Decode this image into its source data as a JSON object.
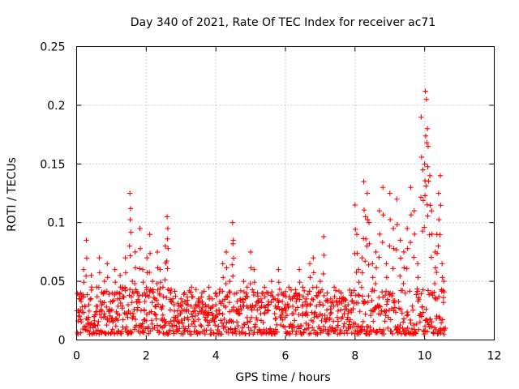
{
  "chart_data": {
    "type": "scatter",
    "title": "Day 340 of 2021, Rate Of TEC Index for receiver ac71",
    "xlabel": "GPS time / hours",
    "ylabel": "ROTI / TECUs",
    "xlim": [
      0,
      12
    ],
    "ylim": [
      0,
      0.25
    ],
    "grid": true,
    "marker": "+",
    "color": "#ff0000",
    "x_ticks": [
      0,
      2,
      4,
      6,
      8,
      10,
      12
    ],
    "x_tick_labels": [
      "0",
      "2",
      "4",
      "6",
      "8",
      "10",
      "12"
    ],
    "y_ticks": [
      0,
      0.05,
      0.1,
      0.15,
      0.2,
      0.25
    ],
    "y_tick_labels": [
      "0",
      "0.05",
      "0.1",
      "0.15",
      "0.2",
      "0.25"
    ],
    "series": [
      {
        "name": "ROTI",
        "x": [
          0.05,
          0.12,
          0.2,
          0.28,
          0.35,
          0.42,
          0.5,
          0.58,
          0.65,
          0.72,
          0.8,
          0.88,
          0.95,
          1.02,
          1.1,
          1.18,
          1.25,
          1.32,
          1.4,
          1.48,
          1.53,
          1.55,
          1.6,
          1.68,
          1.75,
          1.82,
          1.9,
          1.95,
          2.02,
          2.1,
          2.18,
          2.25,
          2.32,
          2.4,
          2.48,
          2.55,
          2.6,
          2.62,
          2.7,
          2.8,
          2.9,
          3.0,
          3.1,
          3.2,
          3.3,
          3.4,
          3.5,
          3.6,
          3.7,
          3.8,
          3.9,
          4.0,
          4.1,
          4.2,
          4.3,
          4.4,
          4.48,
          4.5,
          4.6,
          4.7,
          4.8,
          4.9,
          5.0,
          5.1,
          5.2,
          5.3,
          5.4,
          5.5,
          5.6,
          5.7,
          5.8,
          5.9,
          6.0,
          6.1,
          6.2,
          6.3,
          6.4,
          6.5,
          6.6,
          6.7,
          6.8,
          6.9,
          7.0,
          7.1,
          7.2,
          7.3,
          7.4,
          7.5,
          7.6,
          7.7,
          7.8,
          7.9,
          8.0,
          8.05,
          8.1,
          8.2,
          8.25,
          8.3,
          8.35,
          8.4,
          8.5,
          8.6,
          8.7,
          8.8,
          8.9,
          9.0,
          9.1,
          9.2,
          9.3,
          9.4,
          9.5,
          9.6,
          9.7,
          9.8,
          9.9,
          9.95,
          10.0,
          10.02,
          10.05,
          10.08,
          10.1,
          10.15,
          10.2,
          10.3,
          10.35,
          10.4,
          10.45,
          10.5,
          10.55
        ],
        "y": [
          0.025,
          0.04,
          0.06,
          0.085,
          0.03,
          0.055,
          0.02,
          0.045,
          0.07,
          0.03,
          0.05,
          0.065,
          0.025,
          0.04,
          0.06,
          0.035,
          0.055,
          0.045,
          0.07,
          0.03,
          0.125,
          0.112,
          0.05,
          0.075,
          0.04,
          0.095,
          0.06,
          0.04,
          0.07,
          0.09,
          0.05,
          0.035,
          0.075,
          0.06,
          0.045,
          0.08,
          0.105,
          0.095,
          0.04,
          0.03,
          0.025,
          0.035,
          0.04,
          0.03,
          0.045,
          0.025,
          0.035,
          0.04,
          0.03,
          0.045,
          0.035,
          0.03,
          0.04,
          0.065,
          0.075,
          0.05,
          0.1,
          0.085,
          0.04,
          0.035,
          0.05,
          0.045,
          0.075,
          0.06,
          0.04,
          0.035,
          0.045,
          0.04,
          0.05,
          0.035,
          0.06,
          0.04,
          0.03,
          0.045,
          0.035,
          0.04,
          0.06,
          0.045,
          0.035,
          0.065,
          0.07,
          0.045,
          0.05,
          0.088,
          0.04,
          0.035,
          0.045,
          0.03,
          0.04,
          0.035,
          0.03,
          0.04,
          0.115,
          0.09,
          0.06,
          0.07,
          0.135,
          0.105,
          0.125,
          0.1,
          0.065,
          0.075,
          0.11,
          0.13,
          0.065,
          0.125,
          0.095,
          0.12,
          0.085,
          0.075,
          0.095,
          0.13,
          0.11,
          0.065,
          0.19,
          0.145,
          0.15,
          0.212,
          0.205,
          0.18,
          0.165,
          0.14,
          0.11,
          0.075,
          0.09,
          0.125,
          0.14,
          0.065,
          0.05
        ],
        "dense_band": {
          "x_start": 0.0,
          "x_end": 10.6,
          "y_low": 0.005,
          "y_high_typical": 0.035
        }
      }
    ]
  }
}
